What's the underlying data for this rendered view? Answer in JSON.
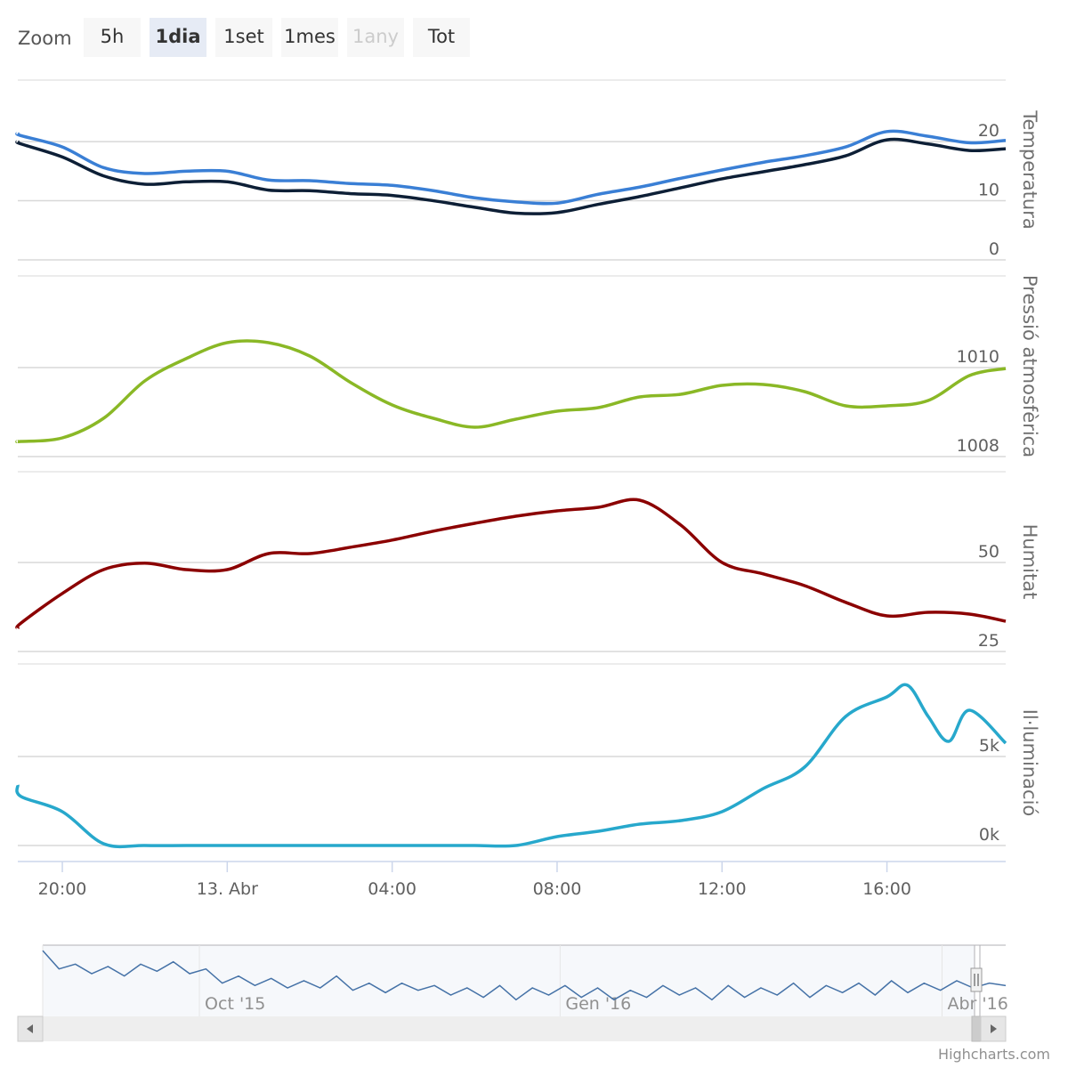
{
  "zoom": {
    "label": "Zoom",
    "buttons": [
      "5h",
      "1dia",
      "1set",
      "1mes",
      "1any",
      "Tot"
    ],
    "selected": 1,
    "disabled": [
      4
    ]
  },
  "chart_data": [
    {
      "type": "line",
      "y_label": "Temperatura",
      "x": [
        18.92,
        19,
        20,
        21,
        22,
        23,
        24,
        25,
        26,
        27,
        28,
        29,
        30,
        31,
        32,
        33,
        34,
        35,
        36,
        37,
        38,
        39,
        40,
        41,
        42,
        42.88
      ],
      "xlim": [
        18.92,
        42.88
      ],
      "ylim": [
        0,
        30.4
      ],
      "yticks": [
        0,
        10,
        20
      ],
      "series": [
        {
          "color": "#3a7fd5",
          "values": [
            21.4,
            21.0,
            19.1,
            15.6,
            14.6,
            15.0,
            15.0,
            13.5,
            13.4,
            12.9,
            12.6,
            11.7,
            10.5,
            9.8,
            9.6,
            11.1,
            12.3,
            13.8,
            15.2,
            16.5,
            17.6,
            19.1,
            21.7,
            20.9,
            19.8,
            20.2
          ]
        },
        {
          "color": "#0d1f36",
          "values": [
            20.0,
            19.6,
            17.4,
            14.2,
            12.8,
            13.2,
            13.2,
            11.8,
            11.7,
            11.2,
            10.9,
            10.0,
            8.9,
            7.9,
            8.0,
            9.4,
            10.7,
            12.2,
            13.7,
            14.9,
            16.1,
            17.6,
            20.3,
            19.6,
            18.5,
            18.8
          ]
        }
      ]
    },
    {
      "type": "line",
      "y_label": "Pressió atmosfèrica",
      "x": [
        18.92,
        19,
        20,
        21,
        22,
        23,
        24,
        25,
        26,
        27,
        28,
        29,
        30,
        31,
        32,
        33,
        34,
        35,
        36,
        37,
        38,
        39,
        40,
        41,
        42,
        42.88
      ],
      "xlim": [
        18.92,
        42.88
      ],
      "ylim": [
        1008,
        1012.06
      ],
      "yticks": [
        1008,
        1010
      ],
      "series": [
        {
          "color": "#8ab826",
          "values": [
            1008.34,
            1008.34,
            1008.42,
            1008.86,
            1009.7,
            1010.2,
            1010.56,
            1010.56,
            1010.26,
            1009.66,
            1009.16,
            1008.86,
            1008.66,
            1008.84,
            1009.02,
            1009.1,
            1009.34,
            1009.4,
            1009.6,
            1009.62,
            1009.46,
            1009.14,
            1009.14,
            1009.26,
            1009.82,
            1009.98
          ]
        }
      ]
    },
    {
      "type": "line",
      "y_label": "Humitat",
      "x": [
        18.92,
        19,
        20,
        21,
        22,
        23,
        24,
        25,
        26,
        27,
        28,
        29,
        30,
        31,
        32,
        33,
        34,
        35,
        36,
        37,
        38,
        39,
        40,
        41,
        42,
        42.88
      ],
      "xlim": [
        18.92,
        42.88
      ],
      "ylim": [
        25,
        75.5
      ],
      "yticks": [
        25,
        50
      ],
      "series": [
        {
          "color": "#8b0000",
          "values": [
            31.5,
            33,
            41.3,
            48,
            49.8,
            48,
            48,
            52.5,
            52.5,
            54.3,
            56.3,
            58.8,
            61,
            63,
            64.5,
            65.5,
            67.5,
            60.5,
            50,
            46.8,
            43.5,
            38.8,
            35,
            36,
            35.5,
            33.5
          ]
        }
      ]
    },
    {
      "type": "line",
      "y_label": "Il·luminació",
      "x": [
        18.92,
        19,
        20,
        21,
        22,
        23,
        24,
        25,
        26,
        27,
        28,
        29,
        30,
        31,
        32,
        33,
        34,
        35,
        36,
        37,
        38,
        39,
        40,
        40.5,
        41,
        41.5,
        42,
        42.88
      ],
      "xlim": [
        18.92,
        42.88
      ],
      "ylim": [
        -900,
        10200
      ],
      "yticks": [
        {
          "value": 0,
          "label": "0k"
        },
        {
          "value": 5000,
          "label": "5k"
        }
      ],
      "xticks": [
        {
          "value": 20,
          "label": "20:00"
        },
        {
          "value": 24,
          "label": "13. Abr"
        },
        {
          "value": 28,
          "label": "04:00"
        },
        {
          "value": 32,
          "label": "08:00"
        },
        {
          "value": 36,
          "label": "12:00"
        },
        {
          "value": 40,
          "label": "16:00"
        }
      ],
      "series": [
        {
          "color": "#27a8cc",
          "values": [
            3400,
            2750,
            1900,
            100,
            0,
            0,
            0,
            0,
            0,
            0,
            0,
            0,
            0,
            0,
            500,
            800,
            1200,
            1400,
            1900,
            3200,
            4400,
            7250,
            8350,
            9000,
            7250,
            5850,
            7600,
            5750
          ]
        }
      ]
    }
  ],
  "navigator": {
    "color": "#4572a7",
    "xlim": [
      0,
      59
    ],
    "ylim": [
      0,
      30
    ],
    "xticks": [
      {
        "value": 9.6,
        "label": "Oct '15"
      },
      {
        "value": 31.7,
        "label": "Gen '16"
      },
      {
        "value": 55.1,
        "label": "Abr '16"
      }
    ],
    "values": [
      27.7,
      20,
      22,
      18,
      21,
      17,
      22,
      19,
      23,
      18,
      20,
      14,
      17,
      13,
      16,
      12,
      15,
      12,
      17,
      11,
      14,
      10,
      14,
      11,
      13,
      9,
      12,
      8,
      13,
      7,
      12,
      9,
      13,
      8,
      12,
      7,
      11,
      8,
      13,
      9,
      12,
      7,
      13,
      8,
      12,
      9,
      14,
      8,
      13,
      10,
      14,
      9,
      15,
      10,
      14,
      11,
      15,
      12,
      14,
      13
    ]
  },
  "credits": "Highcharts.com"
}
